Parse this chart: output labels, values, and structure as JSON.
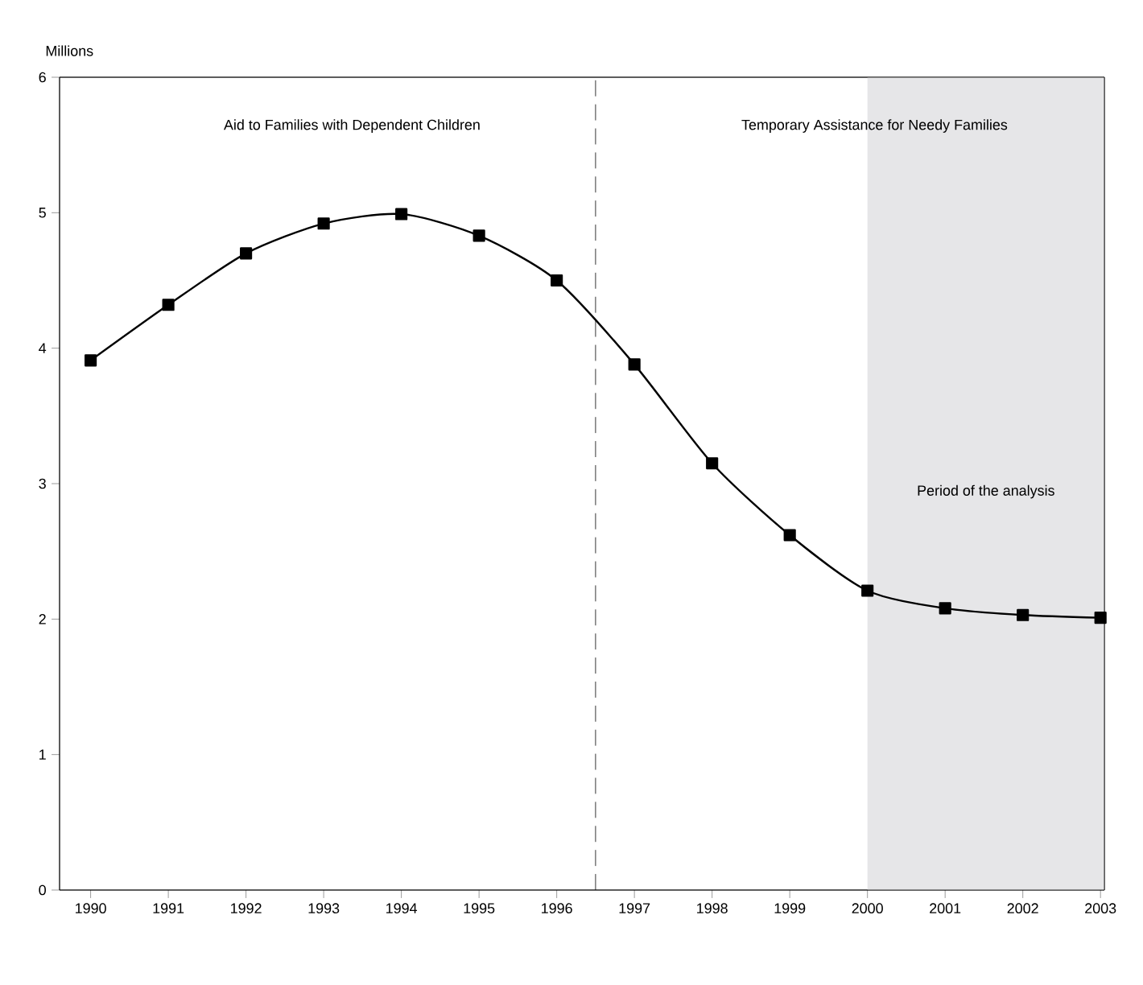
{
  "chart_data": {
    "type": "line",
    "ylabel": "Millions",
    "x": [
      1990,
      1991,
      1992,
      1993,
      1994,
      1995,
      1996,
      1997,
      1998,
      1999,
      2000,
      2001,
      2002,
      2003
    ],
    "series": [
      {
        "color": "#000000",
        "values": [
          3.91,
          4.32,
          4.7,
          4.92,
          4.99,
          4.83,
          4.5,
          3.88,
          3.15,
          2.62,
          2.21,
          2.08,
          2.03,
          2.01
        ]
      }
    ],
    "xlim": [
      1989.6,
      2003.05
    ],
    "ylim": [
      0,
      6
    ],
    "xticks": [
      1990,
      1991,
      1992,
      1993,
      1994,
      1995,
      1996,
      1997,
      1998,
      1999,
      2000,
      2001,
      2002,
      2003
    ],
    "yticks": [
      0,
      1,
      2,
      3,
      4,
      5,
      6
    ],
    "marker": "square",
    "line_style": "solid",
    "grid": false,
    "ref_lines": [
      {
        "axis": "x",
        "value": 1996.5,
        "line_style": "dashed",
        "color": "#000000"
      }
    ],
    "bands": [
      {
        "axis": "x",
        "from": 2000,
        "to": 2003.05,
        "label": "Period of the analysis",
        "color": "#e6e6e8"
      }
    ],
    "annotations": [
      "Aid to Families with Dependent Children",
      "Temporary Assistance for Needy Families"
    ]
  }
}
